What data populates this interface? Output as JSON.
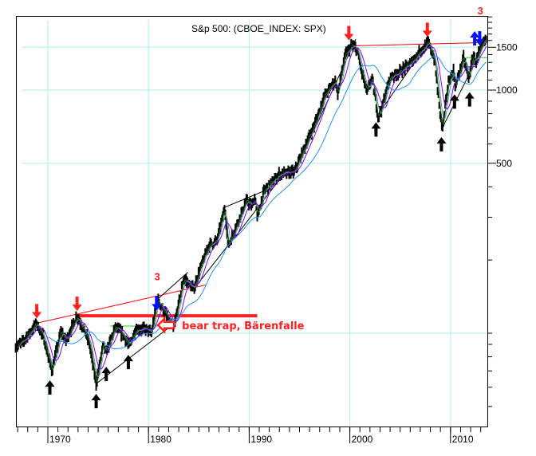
{
  "chart_data": {
    "type": "line",
    "title": "S&p 500: (CBOE_INDEX: SPX)",
    "xlabel": "",
    "ylabel": "",
    "yscale": "log",
    "xlim": [
      1966.8,
      2013.7
    ],
    "ylim": [
      41,
      2016
    ],
    "grid": true,
    "x_tick_labels": [
      "1970",
      "1980",
      "1990",
      "2000",
      "2010"
    ],
    "x_ticks": [
      1970,
      1980,
      1990,
      2000,
      2010
    ],
    "y_tick_labels": [
      "1500",
      "1000",
      "500"
    ],
    "y_ticks": [
      1500,
      1000,
      500
    ],
    "y_gridlines": [
      1500,
      1000,
      500,
      100
    ],
    "price_keypoints": [
      [
        1966.8,
        88
      ],
      [
        1967.5,
        92
      ],
      [
        1968.9,
        110
      ],
      [
        1969.6,
        95
      ],
      [
        1970.4,
        70
      ],
      [
        1971.3,
        102
      ],
      [
        1971.8,
        93
      ],
      [
        1972.9,
        118
      ],
      [
        1973.5,
        105
      ],
      [
        1974.1,
        92
      ],
      [
        1974.8,
        62
      ],
      [
        1975.5,
        90
      ],
      [
        1975.8,
        83
      ],
      [
        1976.7,
        106
      ],
      [
        1977.5,
        98
      ],
      [
        1978.1,
        88
      ],
      [
        1978.7,
        104
      ],
      [
        1979.7,
        104
      ],
      [
        1980.3,
        100
      ],
      [
        1980.9,
        138
      ],
      [
        1981.5,
        124
      ],
      [
        1982.5,
        104
      ],
      [
        1983.5,
        168
      ],
      [
        1984.5,
        152
      ],
      [
        1985.0,
        178
      ],
      [
        1986.0,
        230
      ],
      [
        1986.8,
        240
      ],
      [
        1987.6,
        330
      ],
      [
        1987.9,
        228
      ],
      [
        1988.6,
        268
      ],
      [
        1989.7,
        350
      ],
      [
        1990.3,
        335
      ],
      [
        1990.6,
        365
      ],
      [
        1990.8,
        300
      ],
      [
        1991.5,
        385
      ],
      [
        1993.0,
        450
      ],
      [
        1994.5,
        460
      ],
      [
        1995.5,
        580
      ],
      [
        1996.5,
        720
      ],
      [
        1997.5,
        950
      ],
      [
        1998.6,
        1100
      ],
      [
        1998.8,
        960
      ],
      [
        1999.5,
        1380
      ],
      [
        2000.2,
        1520
      ],
      [
        2000.7,
        1470
      ],
      [
        2001.2,
        1180
      ],
      [
        2001.7,
        980
      ],
      [
        2002.2,
        1120
      ],
      [
        2002.8,
        780
      ],
      [
        2003.2,
        850
      ],
      [
        2004.0,
        1130
      ],
      [
        2005.0,
        1190
      ],
      [
        2006.0,
        1280
      ],
      [
        2007.0,
        1450
      ],
      [
        2007.8,
        1560
      ],
      [
        2008.4,
        1350
      ],
      [
        2008.9,
        850
      ],
      [
        2009.2,
        690
      ],
      [
        2009.8,
        1080
      ],
      [
        2010.3,
        1200
      ],
      [
        2010.5,
        1030
      ],
      [
        2011.3,
        1360
      ],
      [
        2011.8,
        1120
      ],
      [
        2012.3,
        1400
      ],
      [
        2012.5,
        1300
      ],
      [
        2013.0,
        1480
      ],
      [
        2013.6,
        1650
      ]
    ],
    "series": [
      {
        "name": "S&P 500 price bars",
        "color": "#000000"
      },
      {
        "name": "short moving average",
        "color": "#008000",
        "period_months": 3
      },
      {
        "name": "medium moving average",
        "color": "#8080c0",
        "period_months": 6
      },
      {
        "name": "long moving average",
        "color": "#8000ff",
        "period_months": 12
      },
      {
        "name": "very long moving average",
        "color": "#1e90ff",
        "period_months": 40
      }
    ],
    "trendlines": [
      {
        "name": "red-resistance-1968-1985",
        "color": "#ff0000",
        "from": [
          1968.9,
          110
        ],
        "to": [
          1985.7,
          158
        ]
      },
      {
        "name": "thick-red-horizontal",
        "color": "#ff2020",
        "from": [
          1972.9,
          118
        ],
        "to": [
          1990.8,
          118
        ]
      },
      {
        "name": "green-horizontal",
        "color": "#00e000",
        "from": [
          1976.2,
          107
        ],
        "to": [
          1982.2,
          107
        ]
      },
      {
        "name": "red-resistance-2000-2013",
        "color": "#ff0000",
        "from": [
          2000.3,
          1520
        ],
        "to": [
          2013.7,
          1570
        ]
      },
      {
        "name": "green-horizontal-2011",
        "color": "#00e000",
        "from": [
          2011.2,
          1360
        ],
        "to": [
          2013.7,
          1360
        ]
      },
      {
        "name": "black-support-1974-1982",
        "color": "#000000",
        "from": [
          1974.8,
          62
        ],
        "to": [
          1982.6,
          110
        ]
      },
      {
        "name": "black-channel-1980-1984",
        "color": "#000000",
        "from": [
          1980.9,
          138
        ],
        "to": [
          1983.9,
          178
        ]
      },
      {
        "name": "black-channel-1983-1987",
        "color": "#000000",
        "from": [
          1984.5,
          152
        ],
        "to": [
          1987.9,
          230
        ]
      },
      {
        "name": "black-top-1987-1990",
        "color": "#000000",
        "from": [
          1987.6,
          330
        ],
        "to": [
          1991.5,
          385
        ]
      },
      {
        "name": "black-bottom-1987-1993",
        "color": "#000000",
        "from": [
          1987.9,
          228
        ],
        "to": [
          1993.5,
          455
        ]
      },
      {
        "name": "black-rise-1995-2000",
        "color": "#000000",
        "from": [
          1995.5,
          560
        ],
        "to": [
          2000.6,
          1620
        ]
      },
      {
        "name": "black-rise-2002-2007",
        "color": "#000000",
        "from": [
          2002.8,
          790
        ],
        "to": [
          2007.8,
          1580
        ]
      },
      {
        "name": "black-rise-2009-2013",
        "color": "#000000",
        "from": [
          2009.2,
          700
        ],
        "to": [
          2013.4,
          1560
        ]
      }
    ],
    "annotations": {
      "red_down_arrows": [
        [
          1968.9,
          110
        ],
        [
          1972.9,
          118
        ],
        [
          1999.9,
          1530
        ],
        [
          2007.7,
          1580
        ]
      ],
      "blue_down_arrows": [
        [
          1980.8,
          140
        ],
        [
          2012.9,
          1720
        ]
      ],
      "blue_up_arrows": [
        [
          2012.4,
          1720
        ]
      ],
      "black_up_arrows": [
        [
          1970.2,
          66
        ],
        [
          1974.8,
          58
        ],
        [
          1975.8,
          75
        ],
        [
          1978.0,
          84
        ],
        [
          2002.6,
          760
        ],
        [
          2009.1,
          660
        ],
        [
          2010.4,
          990
        ],
        [
          2011.9,
          1010
        ]
      ],
      "wave_labels": [
        {
          "text": "3",
          "at": [
            1980.9,
            165
          ]
        },
        {
          "text": "3",
          "at": [
            2013.0,
            2050
          ]
        }
      ],
      "callout": {
        "text": "bear trap, Bärenfalle",
        "color": "#ff2020",
        "at": [
          1983.8,
          104
        ]
      }
    },
    "colors": {
      "grid": "#aeeeee",
      "frame": "#000000",
      "annotation_red": "#ff2020",
      "annotation_blue": "#0010ff"
    }
  }
}
